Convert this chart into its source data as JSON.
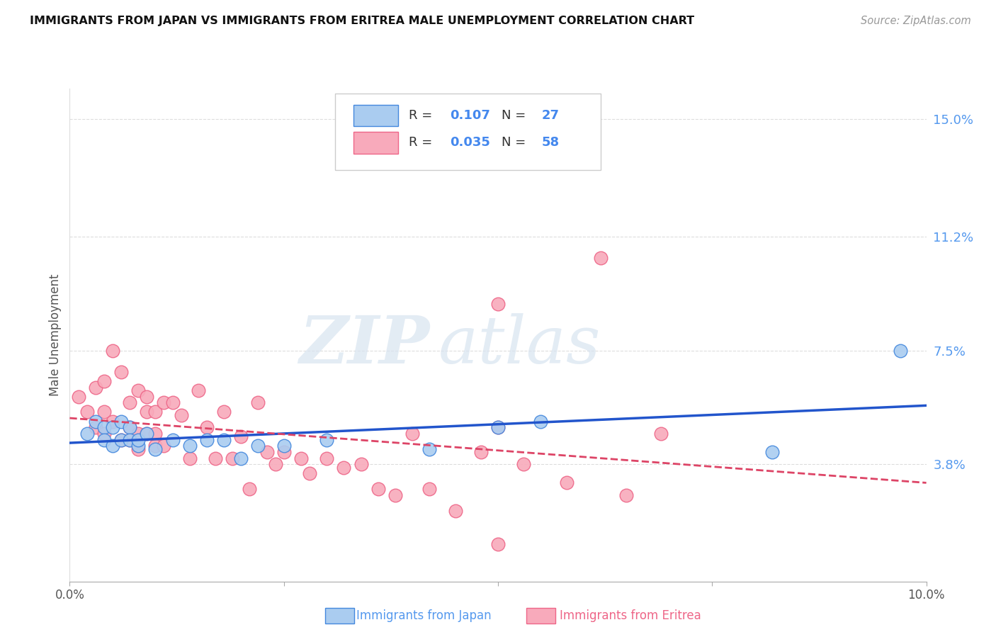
{
  "title": "IMMIGRANTS FROM JAPAN VS IMMIGRANTS FROM ERITREA MALE UNEMPLOYMENT CORRELATION CHART",
  "source": "Source: ZipAtlas.com",
  "ylabel": "Male Unemployment",
  "xlim": [
    0.0,
    0.1
  ],
  "ylim": [
    0.0,
    0.16
  ],
  "yticks": [
    0.038,
    0.075,
    0.112,
    0.15
  ],
  "ytick_labels": [
    "3.8%",
    "7.5%",
    "11.2%",
    "15.0%"
  ],
  "xticks": [
    0.0,
    0.025,
    0.05,
    0.075,
    0.1
  ],
  "xtick_labels": [
    "0.0%",
    "",
    "",
    "",
    "10.0%"
  ],
  "legend_japan_R": "0.107",
  "legend_japan_N": "27",
  "legend_eritrea_R": "0.035",
  "legend_eritrea_N": "58",
  "japan_color": "#aaccf0",
  "eritrea_color": "#f8aabb",
  "japan_edge_color": "#4488dd",
  "eritrea_edge_color": "#ee6688",
  "japan_line_color": "#2255cc",
  "eritrea_line_color": "#dd4466",
  "watermark_zip": "ZIP",
  "watermark_atlas": "atlas",
  "japan_x": [
    0.002,
    0.003,
    0.004,
    0.004,
    0.005,
    0.005,
    0.006,
    0.006,
    0.007,
    0.007,
    0.008,
    0.008,
    0.009,
    0.01,
    0.012,
    0.014,
    0.016,
    0.018,
    0.02,
    0.022,
    0.025,
    0.03,
    0.042,
    0.05,
    0.055,
    0.082,
    0.097
  ],
  "japan_y": [
    0.048,
    0.052,
    0.05,
    0.046,
    0.05,
    0.044,
    0.052,
    0.046,
    0.05,
    0.046,
    0.044,
    0.046,
    0.048,
    0.043,
    0.046,
    0.044,
    0.046,
    0.046,
    0.04,
    0.044,
    0.044,
    0.046,
    0.043,
    0.05,
    0.052,
    0.042,
    0.075
  ],
  "eritrea_x": [
    0.001,
    0.002,
    0.003,
    0.003,
    0.004,
    0.004,
    0.004,
    0.005,
    0.005,
    0.006,
    0.006,
    0.007,
    0.007,
    0.007,
    0.008,
    0.008,
    0.008,
    0.009,
    0.009,
    0.009,
    0.01,
    0.01,
    0.01,
    0.011,
    0.011,
    0.012,
    0.013,
    0.014,
    0.015,
    0.016,
    0.017,
    0.018,
    0.019,
    0.02,
    0.021,
    0.022,
    0.023,
    0.024,
    0.025,
    0.027,
    0.028,
    0.03,
    0.032,
    0.034,
    0.036,
    0.038,
    0.04,
    0.042,
    0.045,
    0.048,
    0.05,
    0.05,
    0.053,
    0.058,
    0.062,
    0.065,
    0.069,
    0.05
  ],
  "eritrea_y": [
    0.06,
    0.055,
    0.063,
    0.05,
    0.065,
    0.055,
    0.048,
    0.075,
    0.052,
    0.068,
    0.046,
    0.058,
    0.05,
    0.046,
    0.062,
    0.048,
    0.043,
    0.06,
    0.055,
    0.048,
    0.055,
    0.048,
    0.044,
    0.058,
    0.044,
    0.058,
    0.054,
    0.04,
    0.062,
    0.05,
    0.04,
    0.055,
    0.04,
    0.047,
    0.03,
    0.058,
    0.042,
    0.038,
    0.042,
    0.04,
    0.035,
    0.04,
    0.037,
    0.038,
    0.03,
    0.028,
    0.048,
    0.03,
    0.023,
    0.042,
    0.09,
    0.05,
    0.038,
    0.032,
    0.105,
    0.028,
    0.048,
    0.012
  ]
}
